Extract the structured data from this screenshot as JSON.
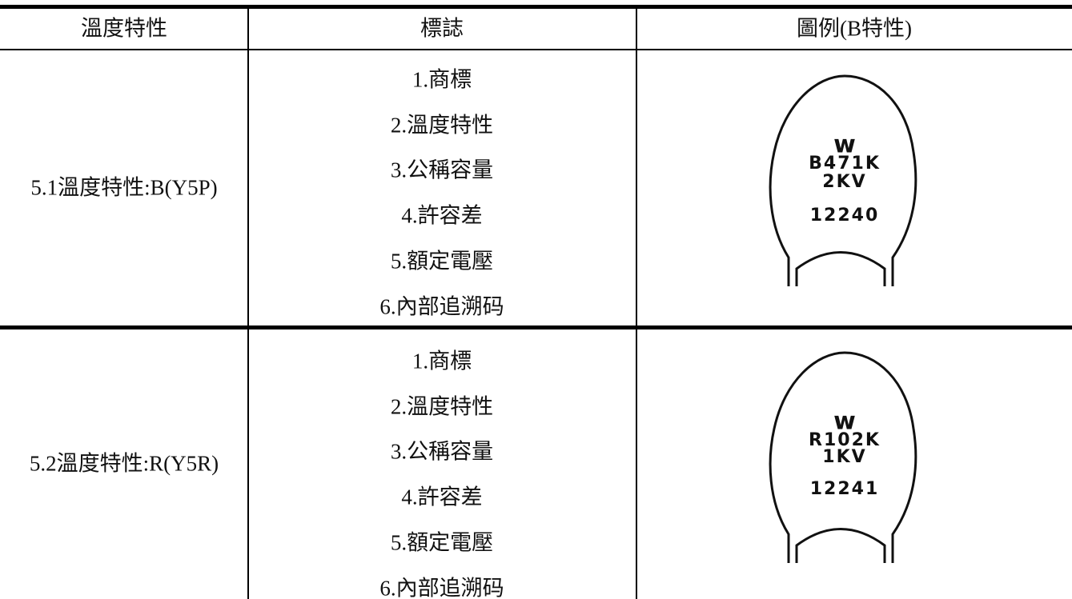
{
  "table": {
    "header": [
      "溫度特性",
      "標誌",
      "圖例(B特性)"
    ],
    "rows": [
      {
        "characteristic": "5.1溫度特性:B(Y5P)",
        "markings": [
          "1.商標",
          "2.溫度特性",
          "3.公稱容量",
          "4.許容差",
          "5.額定電壓",
          "6.內部追溯码"
        ],
        "image": {
          "logo": "w",
          "lines": [
            "B471K",
            "2KV",
            "12240"
          ]
        }
      },
      {
        "characteristic": "5.2溫度特性:R(Y5R)",
        "markings": [
          "1.商標",
          "2.溫度特性",
          "3.公稱容量",
          "4.許容差",
          "5.額定電壓",
          "6.內部追溯码"
        ],
        "image": {
          "logo": "w",
          "lines": [
            "R102K",
            "1KV",
            "12241"
          ]
        }
      }
    ]
  }
}
